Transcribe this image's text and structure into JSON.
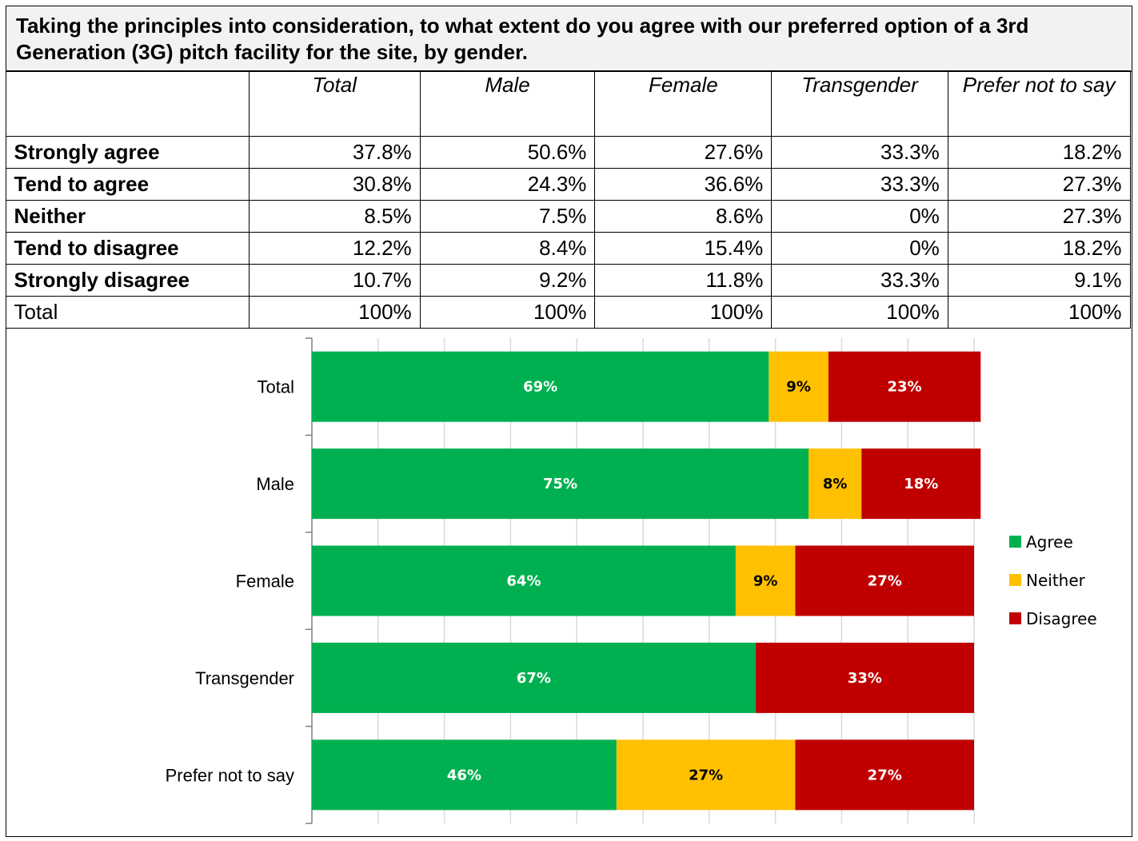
{
  "title": "Taking the principles into consideration, to what extent do you agree with our preferred option of a 3rd Generation (3G) pitch facility for the site, by gender.",
  "table": {
    "columns": [
      "Total",
      "Male",
      "Female",
      "Transgender",
      "Prefer not to say"
    ],
    "rows": [
      {
        "label": "Strongly agree",
        "values": [
          "37.8%",
          "50.6%",
          "27.6%",
          "33.3%",
          "18.2%"
        ]
      },
      {
        "label": "Tend to agree",
        "values": [
          "30.8%",
          "24.3%",
          "36.6%",
          "33.3%",
          "27.3%"
        ]
      },
      {
        "label": "Neither",
        "values": [
          "8.5%",
          "7.5%",
          "8.6%",
          "0%",
          "27.3%"
        ]
      },
      {
        "label": "Tend to disagree",
        "values": [
          "12.2%",
          "8.4%",
          "15.4%",
          "0%",
          "18.2%"
        ]
      },
      {
        "label": "Strongly disagree",
        "values": [
          "10.7%",
          "9.2%",
          "11.8%",
          "33.3%",
          "9.1%"
        ]
      },
      {
        "label": "Total",
        "values": [
          "100%",
          "100%",
          "100%",
          "100%",
          "100%"
        ]
      }
    ]
  },
  "chart_data": {
    "type": "bar",
    "orientation": "horizontal",
    "stacked": true,
    "categories": [
      "Total",
      "Male",
      "Female",
      "Transgender",
      "Prefer not to say"
    ],
    "series": [
      {
        "name": "Agree",
        "color": "#00b050",
        "values": [
          69,
          75,
          64,
          67,
          46
        ],
        "labels": [
          "69%",
          "75%",
          "64%",
          "67%",
          "46%"
        ]
      },
      {
        "name": "Neither",
        "color": "#ffc000",
        "values": [
          9,
          8,
          9,
          0,
          27
        ],
        "labels": [
          "9%",
          "8%",
          "9%",
          "",
          "27%"
        ]
      },
      {
        "name": "Disagree",
        "color": "#c00000",
        "values": [
          23,
          18,
          27,
          33,
          27
        ],
        "labels": [
          "23%",
          "18%",
          "27%",
          "33%",
          "27%"
        ]
      }
    ],
    "xlim": [
      0,
      100
    ],
    "grid": true,
    "legend": "right",
    "title": "",
    "xlabel": "",
    "ylabel": ""
  }
}
